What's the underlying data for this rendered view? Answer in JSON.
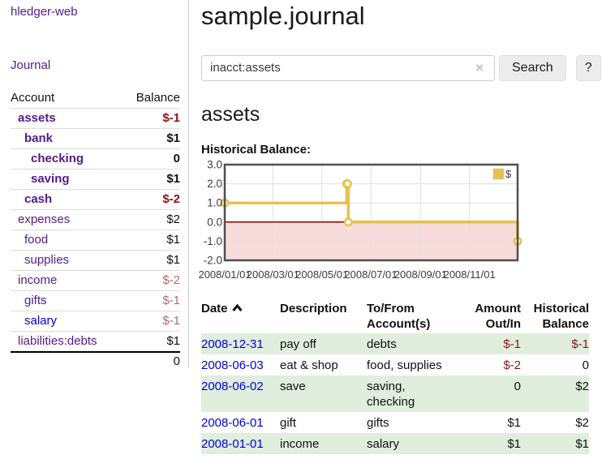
{
  "sidebar": {
    "app_title": "hledger-web",
    "nav": {
      "journal_label": "Journal"
    },
    "accounts_table": {
      "headers": {
        "account": "Account",
        "balance": "Balance"
      },
      "rows": [
        {
          "name": "assets",
          "level": 1,
          "bold": true,
          "link_color": "purple",
          "balance": "$-1",
          "balance_style": "neg-strong"
        },
        {
          "name": "bank",
          "level": 2,
          "bold": true,
          "link_color": "purple",
          "balance": "$1",
          "balance_style": ""
        },
        {
          "name": "checking",
          "level": 3,
          "bold": true,
          "link_color": "purple",
          "balance": "0",
          "balance_style": ""
        },
        {
          "name": "saving",
          "level": 3,
          "bold": true,
          "link_color": "purple",
          "balance": "$1",
          "balance_style": ""
        },
        {
          "name": "cash",
          "level": 2,
          "bold": true,
          "link_color": "purple",
          "balance": "$-2",
          "balance_style": "neg-strong"
        },
        {
          "name": "expenses",
          "level": 1,
          "bold": false,
          "link_color": "purple",
          "balance": "$2",
          "balance_style": ""
        },
        {
          "name": "food",
          "level": 2,
          "bold": false,
          "link_color": "purple",
          "balance": "$1",
          "balance_style": ""
        },
        {
          "name": "supplies",
          "level": 2,
          "bold": false,
          "link_color": "purple",
          "balance": "$1",
          "balance_style": ""
        },
        {
          "name": "income",
          "level": 1,
          "bold": false,
          "link_color": "purple",
          "balance": "$-2",
          "balance_style": "neg-weak"
        },
        {
          "name": "gifts",
          "level": 2,
          "bold": false,
          "link_color": "purple",
          "balance": "$-1",
          "balance_style": "neg-weak"
        },
        {
          "name": "salary",
          "level": 2,
          "bold": false,
          "link_color": "blue",
          "balance": "$-1",
          "balance_style": "neg-weak"
        },
        {
          "name": "liabilities:debts",
          "level": 1,
          "bold": false,
          "link_color": "purple",
          "balance": "$1",
          "balance_style": ""
        }
      ],
      "total": "0"
    }
  },
  "main": {
    "title": "sample.journal",
    "search": {
      "value": "inacct:assets",
      "clear_label": "×",
      "button_label": "Search",
      "help_label": "?"
    },
    "account_heading": "assets",
    "chart_label": "Historical Balance:"
  },
  "chart_data": {
    "type": "line",
    "title": "Historical Balance:",
    "step": true,
    "series": [
      {
        "name": "$",
        "color": "#e9c04a",
        "points": [
          [
            "2008-01-01",
            1
          ],
          [
            "2008-06-01",
            2
          ],
          [
            "2008-06-02",
            2
          ],
          [
            "2008-06-03",
            0
          ],
          [
            "2008-12-31",
            -1
          ]
        ]
      }
    ],
    "xrange": [
      "2008-01-01",
      "2008-12-31"
    ],
    "ylim": [
      -2,
      3
    ],
    "yticks": [
      "3.0",
      "2.0",
      "1.0",
      "0.0",
      "-1.0",
      "-2.0"
    ],
    "ytick_values": [
      3,
      2,
      1,
      0,
      -1,
      -2
    ],
    "xticks": [
      "2008/01/01",
      "2008/03/01",
      "2008/05/01",
      "2008/07/01",
      "2008/09/01",
      "2008/11/01"
    ],
    "xtick_dates": [
      "2008-01-01",
      "2008-03-01",
      "2008-05-01",
      "2008-07-01",
      "2008-09-01",
      "2008-11-01"
    ],
    "grid": true,
    "legend": {
      "label": "$",
      "position": "top-right"
    },
    "colors": {
      "border": "#4f4f4f",
      "gridline": "#e0e0e0",
      "tick_label": "#3c3c3c",
      "zero_line": "#8b0000",
      "negative_region": "#f8dcdc",
      "marker_fill": "#ffffff",
      "legend_box_border": "#cccccc"
    }
  },
  "transactions": {
    "headers": {
      "date": "Date",
      "description": "Description",
      "tofrom": "To/From Account(s)",
      "amount": "Amount Out/In",
      "balance": "Historical Balance"
    },
    "rows": [
      {
        "date": "2008-12-31",
        "description": "pay off",
        "tofrom": "debts",
        "amount": {
          "text": "$-1",
          "negative": true
        },
        "balance": {
          "text": "$-1",
          "negative": true
        }
      },
      {
        "date": "2008-06-03",
        "description": "eat & shop",
        "tofrom": "food, supplies",
        "amount": {
          "text": "$-2",
          "negative": true
        },
        "balance": {
          "text": "0",
          "negative": false
        }
      },
      {
        "date": "2008-06-02",
        "description": "save",
        "tofrom": "saving,\nchecking",
        "amount": {
          "text": "0",
          "negative": false
        },
        "balance": {
          "text": "$2",
          "negative": false
        }
      },
      {
        "date": "2008-06-01",
        "description": "gift",
        "tofrom": "gifts",
        "amount": {
          "text": "$1",
          "negative": false
        },
        "balance": {
          "text": "$2",
          "negative": false
        }
      },
      {
        "date": "2008-01-01",
        "description": "income",
        "tofrom": "salary",
        "amount": {
          "text": "$1",
          "negative": false
        },
        "balance": {
          "text": "$1",
          "negative": false
        }
      }
    ]
  }
}
